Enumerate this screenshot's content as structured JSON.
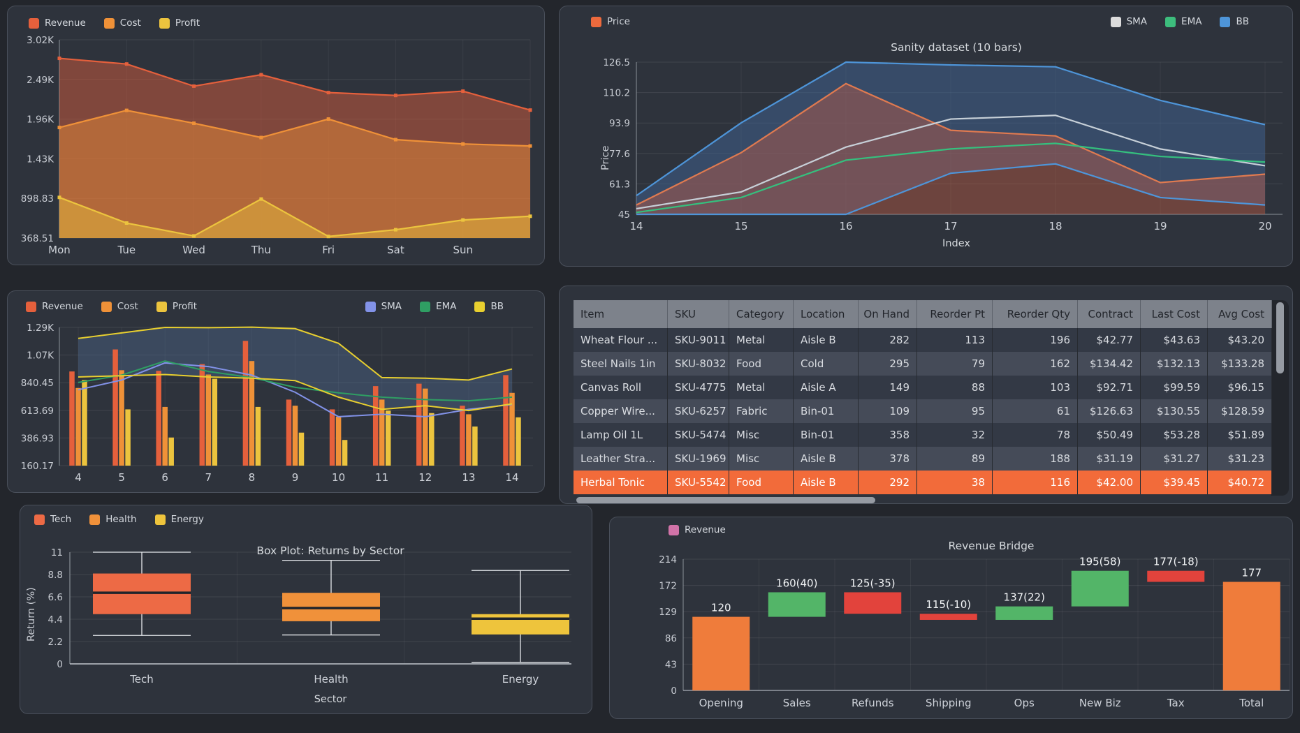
{
  "panels": {
    "weekly": {
      "legend": [
        {
          "label": "Revenue",
          "color": "#e5603c"
        },
        {
          "label": "Cost",
          "color": "#ef9138"
        },
        {
          "label": "Profit",
          "color": "#ecc43e"
        }
      ]
    },
    "sanity": {
      "title": "Sanity dataset (10 bars)",
      "xlabel": "Index",
      "ylabel": "Price",
      "legend_left": [
        {
          "label": "Price",
          "color": "#ed6a3d"
        }
      ],
      "legend_right": [
        {
          "label": "SMA",
          "color": "#dcdcdc"
        },
        {
          "label": "EMA",
          "color": "#3dbd7d"
        },
        {
          "label": "BB",
          "color": "#4e95d9"
        }
      ]
    },
    "daily": {
      "legend_left": [
        {
          "label": "Revenue",
          "color": "#e5603c"
        },
        {
          "label": "Cost",
          "color": "#ef9138"
        },
        {
          "label": "Profit",
          "color": "#ecc43e"
        }
      ],
      "legend_right": [
        {
          "label": "SMA",
          "color": "#8292e8"
        },
        {
          "label": "EMA",
          "color": "#2f9e63"
        },
        {
          "label": "BB",
          "color": "#e8cf2f"
        }
      ]
    },
    "boxplot": {
      "title": "Box Plot: Returns by Sector",
      "xlabel": "Sector",
      "ylabel": "Return (%)",
      "legend": [
        {
          "label": "Tech",
          "color": "#ed6a45"
        },
        {
          "label": "Health",
          "color": "#f0913a"
        },
        {
          "label": "Energy",
          "color": "#eec43c"
        }
      ]
    },
    "waterfall": {
      "title": "Revenue Bridge",
      "legend": [
        {
          "label": "Revenue",
          "color": "#d173a8"
        }
      ]
    }
  },
  "table": {
    "columns": [
      "Item",
      "SKU",
      "Category",
      "Location",
      "On Hand",
      "Reorder Pt",
      "Reorder Qty",
      "Contract",
      "Last Cost",
      "Avg Cost"
    ],
    "align": [
      "l",
      "l",
      "l",
      "l",
      "r",
      "r",
      "r",
      "r",
      "r",
      "r"
    ],
    "rows": [
      [
        "Wheat Flour ...",
        "SKU-9011",
        "Metal",
        "Aisle B",
        "282",
        "113",
        "196",
        "$42.77",
        "$43.63",
        "$43.20"
      ],
      [
        "Steel Nails 1in",
        "SKU-8032",
        "Food",
        "Cold",
        "295",
        "79",
        "162",
        "$134.42",
        "$132.13",
        "$133.28"
      ],
      [
        "Canvas Roll",
        "SKU-4775",
        "Metal",
        "Aisle A",
        "149",
        "88",
        "103",
        "$92.71",
        "$99.59",
        "$96.15"
      ],
      [
        "Copper Wire...",
        "SKU-6257",
        "Fabric",
        "Bin-01",
        "109",
        "95",
        "61",
        "$126.63",
        "$130.55",
        "$128.59"
      ],
      [
        "Lamp Oil 1L",
        "SKU-5474",
        "Misc",
        "Bin-01",
        "358",
        "32",
        "78",
        "$50.49",
        "$53.28",
        "$51.89"
      ],
      [
        "Leather Stra...",
        "SKU-1969",
        "Misc",
        "Aisle B",
        "378",
        "89",
        "188",
        "$31.19",
        "$31.27",
        "$31.23"
      ],
      [
        "Herbal Tonic",
        "SKU-5542",
        "Food",
        "Aisle B",
        "292",
        "38",
        "116",
        "$42.00",
        "$39.45",
        "$40.72"
      ]
    ],
    "highlight_row": 6
  },
  "chart_data": [
    {
      "id": "weekly-area",
      "type": "area",
      "title": "",
      "categories": [
        "Mon",
        "Tue",
        "Wed",
        "Thu",
        "Fri",
        "Sat",
        "Sun",
        ""
      ],
      "series": [
        {
          "name": "Revenue",
          "color": "#e5603c",
          "values": [
            2772,
            2696,
            2400,
            2553,
            2314,
            2276,
            2333,
            2080
          ]
        },
        {
          "name": "Cost",
          "color": "#ef9138",
          "values": [
            1847,
            2076,
            1904,
            1713,
            1960,
            1685,
            1627,
            1600
          ]
        },
        {
          "name": "Profit",
          "color": "#ecc43e",
          "values": [
            912,
            569,
            397,
            890,
            390,
            480,
            610,
            660
          ]
        }
      ],
      "ylim": [
        368.51,
        3020
      ],
      "yticks": [
        "3.02K",
        "2.49K",
        "1.96K",
        "1.43K",
        "898.83",
        "368.51"
      ],
      "grid": true,
      "legend_position": "top-left"
    },
    {
      "id": "sanity-lines",
      "type": "line",
      "title": "Sanity dataset (10 bars)",
      "xlabel": "Index",
      "ylabel": "Price",
      "x": [
        14,
        15,
        16,
        17,
        18,
        19,
        20
      ],
      "series": [
        {
          "name": "Price",
          "color": "#e07a50",
          "values": [
            50,
            78,
            115,
            90,
            87,
            62,
            66.5
          ],
          "area": "rgba(198,92,66,0.42)"
        },
        {
          "name": "SMA",
          "color": "#c7d0d8",
          "values": [
            48,
            57,
            81,
            96,
            98,
            80,
            71
          ]
        },
        {
          "name": "EMA",
          "color": "#35c07e",
          "values": [
            46,
            54,
            74,
            80,
            83,
            76,
            73
          ]
        },
        {
          "name": "BB upper",
          "color": "#4e95d9",
          "values": [
            55,
            94,
            126.5,
            125,
            124,
            106,
            93
          ]
        },
        {
          "name": "BB lower",
          "color": "#4e95d9",
          "values": [
            45,
            45,
            45,
            67,
            72,
            54,
            50
          ]
        }
      ],
      "band": {
        "upper": "BB upper",
        "lower": "BB lower",
        "fill": "rgba(64,100,148,0.5)"
      },
      "ylim": [
        45,
        126.5
      ],
      "yticks": [
        "126.5",
        "110.2",
        "93.9",
        "77.6",
        "61.3",
        "45"
      ],
      "grid": true
    },
    {
      "id": "daily-barline",
      "type": "bar-line",
      "title": "",
      "categories": [
        "4",
        "5",
        "6",
        "7",
        "8",
        "9",
        "10",
        "11",
        "12",
        "13",
        "14"
      ],
      "bar_series": [
        {
          "name": "Revenue",
          "color": "#e5603c",
          "values": [
            930,
            1110,
            935,
            990,
            1180,
            700,
            620,
            810,
            830,
            650,
            900
          ]
        },
        {
          "name": "Cost",
          "color": "#ef9138",
          "values": [
            795,
            940,
            640,
            905,
            1015,
            650,
            560,
            700,
            790,
            580,
            755
          ]
        },
        {
          "name": "Profit",
          "color": "#ecc43e",
          "values": [
            860,
            620,
            390,
            870,
            640,
            430,
            370,
            610,
            590,
            480,
            555
          ]
        }
      ],
      "line_series": [
        {
          "name": "SMA",
          "color": "#8292e8",
          "values": [
            780,
            860,
            1000,
            970,
            900,
            760,
            560,
            580,
            560,
            620,
            660
          ]
        },
        {
          "name": "EMA",
          "color": "#2f9e63",
          "values": [
            840,
            900,
            1015,
            930,
            880,
            800,
            755,
            720,
            700,
            690,
            720
          ]
        },
        {
          "name": "BB upper",
          "color": "#e8cf2f",
          "values": [
            1200,
            1245,
            1290,
            1288,
            1292,
            1280,
            1160,
            880,
            875,
            860,
            950
          ]
        },
        {
          "name": "BB lower",
          "color": "#e8cf2f",
          "values": [
            885,
            895,
            905,
            885,
            875,
            855,
            720,
            620,
            650,
            610,
            665
          ]
        }
      ],
      "band": {
        "upper": "BB upper",
        "lower": "BB lower",
        "fill": "rgba(84,116,158,0.35)"
      },
      "ylim": [
        160.17,
        1290
      ],
      "yticks": [
        "1.29K",
        "1.07K",
        "840.45",
        "613.69",
        "386.93",
        "160.17"
      ],
      "grid": true
    },
    {
      "id": "returns-box",
      "type": "box",
      "title": "Box Plot: Returns by Sector",
      "xlabel": "Sector",
      "ylabel": "Return (%)",
      "categories": [
        "Tech",
        "Health",
        "Energy"
      ],
      "boxes": [
        {
          "low": 2.8,
          "q1": 4.9,
          "med": 7.0,
          "q3": 8.9,
          "high": 11.0,
          "color": "#ed6a45"
        },
        {
          "low": 2.85,
          "q1": 4.2,
          "med": 5.5,
          "q3": 7.0,
          "high": 10.2,
          "color": "#f0913a"
        },
        {
          "low": 0.15,
          "q1": 2.9,
          "med": 4.45,
          "q3": 4.9,
          "high": 9.2,
          "color": "#eec43c"
        }
      ],
      "ylim": [
        0,
        11
      ],
      "yticks": [
        "11",
        "8.8",
        "6.6",
        "4.4",
        "2.2",
        "0"
      ]
    },
    {
      "id": "revenue-bridge",
      "type": "waterfall",
      "title": "Revenue Bridge",
      "bars": [
        {
          "label": "Opening",
          "value_label": "120",
          "start": 0,
          "end": 120,
          "kind": "total"
        },
        {
          "label": "Sales",
          "value_label": "160(40)",
          "start": 120,
          "end": 160,
          "kind": "up"
        },
        {
          "label": "Refunds",
          "value_label": "125(-35)",
          "start": 160,
          "end": 125,
          "kind": "down"
        },
        {
          "label": "Shipping",
          "value_label": "115(-10)",
          "start": 125,
          "end": 115,
          "kind": "down"
        },
        {
          "label": "Ops",
          "value_label": "137(22)",
          "start": 115,
          "end": 137,
          "kind": "up"
        },
        {
          "label": "New Biz",
          "value_label": "195(58)",
          "start": 137,
          "end": 195,
          "kind": "up"
        },
        {
          "label": "Tax",
          "value_label": "177(-18)",
          "start": 195,
          "end": 177,
          "kind": "down"
        },
        {
          "label": "Total",
          "value_label": "177",
          "start": 0,
          "end": 177,
          "kind": "total"
        }
      ],
      "colors": {
        "total": "#ef7c3b",
        "up": "#53b568",
        "down": "#e2433c"
      },
      "ylim": [
        0,
        214
      ],
      "yticks": [
        "214",
        "172",
        "129",
        "86",
        "43",
        "0"
      ]
    }
  ]
}
